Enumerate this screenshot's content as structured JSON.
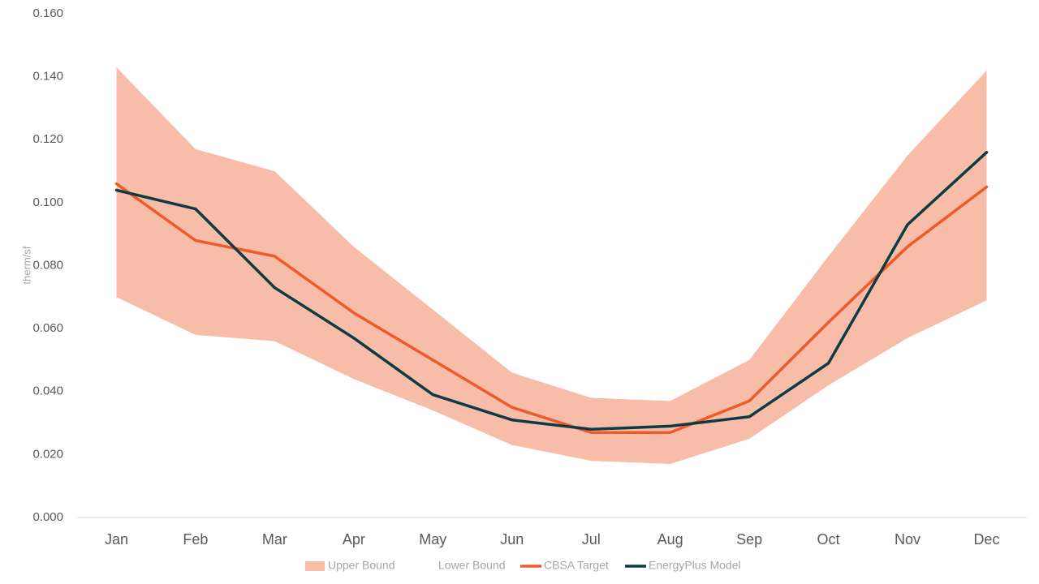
{
  "chart_data": {
    "type": "area",
    "categories": [
      "Jan",
      "Feb",
      "Mar",
      "Apr",
      "May",
      "Jun",
      "Jul",
      "Aug",
      "Sep",
      "Oct",
      "Nov",
      "Dec"
    ],
    "title": "",
    "xlabel": "",
    "ylabel": "therm/sf",
    "ylim": [
      0,
      0.16
    ],
    "yticks": [
      "0.000",
      "0.020",
      "0.040",
      "0.060",
      "0.080",
      "0.100",
      "0.120",
      "0.140",
      "0.160"
    ],
    "grid": false,
    "legend_position": "bottom",
    "series": [
      {
        "name": "Upper Bound",
        "kind": "band-upper",
        "color": "#f8bda8",
        "values": [
          0.143,
          0.117,
          0.11,
          0.086,
          0.066,
          0.046,
          0.038,
          0.037,
          0.05,
          0.083,
          0.115,
          0.142
        ]
      },
      {
        "name": "Lower Bound",
        "kind": "band-lower",
        "color": "#ffffff",
        "values": [
          0.07,
          0.058,
          0.056,
          0.044,
          0.034,
          0.023,
          0.018,
          0.017,
          0.025,
          0.042,
          0.057,
          0.069
        ]
      },
      {
        "name": "CBSA Target",
        "kind": "line",
        "color": "#f05a28",
        "values": [
          0.106,
          0.088,
          0.083,
          0.065,
          0.05,
          0.035,
          0.027,
          0.027,
          0.037,
          0.062,
          0.086,
          0.105
        ]
      },
      {
        "name": "EnergyPlus Model",
        "kind": "line",
        "color": "#0d3b44",
        "values": [
          0.104,
          0.098,
          0.073,
          0.057,
          0.039,
          0.031,
          0.028,
          0.029,
          0.032,
          0.049,
          0.093,
          0.116
        ]
      }
    ]
  }
}
